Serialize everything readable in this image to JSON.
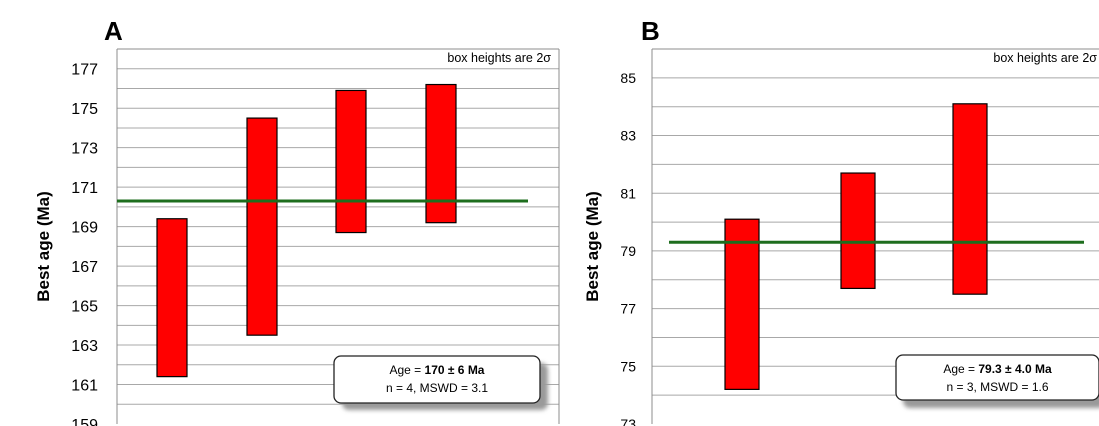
{
  "chart_data": [
    {
      "type": "bar",
      "panel": "A",
      "ylabel": "Best age (Ma)",
      "ylim": [
        159,
        178
      ],
      "yticks": [
        159,
        161,
        163,
        165,
        167,
        169,
        171,
        173,
        175,
        177
      ],
      "grid": true,
      "note": "box heights are 2σ",
      "bars": [
        {
          "low": 161.4,
          "high": 169.4
        },
        {
          "low": 163.5,
          "high": 174.5
        },
        {
          "low": 168.7,
          "high": 175.9
        },
        {
          "low": 169.2,
          "high": 176.2
        }
      ],
      "weighted_mean": 170.3,
      "stats_line1_prefix": "Age = ",
      "stats_line1_value": "170 ± 6 Ma",
      "stats_line2": "n = 4, MSWD = 3.1",
      "bar_color": "#ff0000",
      "mean_line_color": "#1e6e1e"
    },
    {
      "type": "bar",
      "panel": "B",
      "ylabel": "Best age (Ma)",
      "ylim": [
        73,
        86
      ],
      "yticks": [
        73,
        75,
        77,
        79,
        81,
        83,
        85
      ],
      "grid": true,
      "note": "box heights are 2σ",
      "bars": [
        {
          "low": 74.2,
          "high": 80.1
        },
        {
          "low": 77.7,
          "high": 81.7
        },
        {
          "low": 77.5,
          "high": 84.1
        }
      ],
      "weighted_mean": 79.3,
      "stats_line1_prefix": "Age = ",
      "stats_line1_value": "79.3 ± 4.0 Ma",
      "stats_line2": "n = 3, MSWD = 1.6",
      "bar_color": "#ff0000",
      "mean_line_color": "#1e6e1e"
    }
  ]
}
